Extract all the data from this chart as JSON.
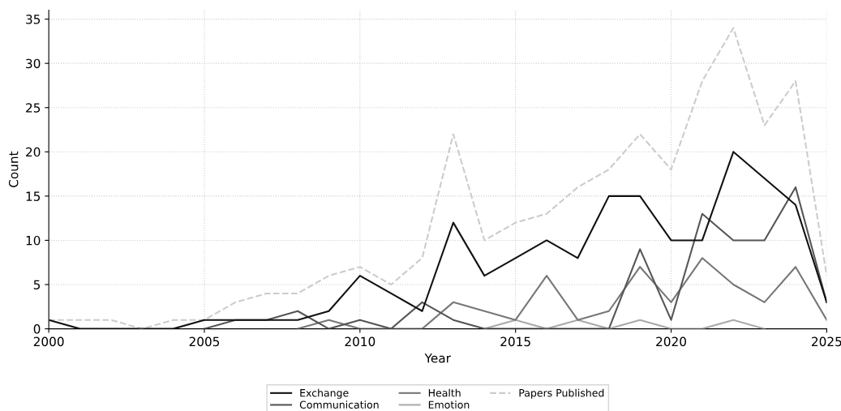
{
  "chart_data": {
    "type": "line",
    "xlabel": "Year",
    "ylabel": "Count",
    "x": [
      2000,
      2001,
      2002,
      2003,
      2004,
      2005,
      2006,
      2007,
      2008,
      2009,
      2010,
      2011,
      2012,
      2013,
      2014,
      2015,
      2016,
      2017,
      2018,
      2019,
      2020,
      2021,
      2022,
      2023,
      2024,
      2025
    ],
    "series": [
      {
        "name": "Exchange",
        "color": "#111111",
        "values": [
          1,
          0,
          0,
          0,
          0,
          1,
          1,
          1,
          1,
          2,
          6,
          4,
          2,
          12,
          6,
          8,
          10,
          8,
          15,
          15,
          10,
          10,
          20,
          17,
          14,
          3
        ]
      },
      {
        "name": "Communication",
        "color": "#555555",
        "values": [
          null,
          null,
          null,
          null,
          null,
          0,
          1,
          1,
          2,
          0,
          1,
          0,
          3,
          1,
          0,
          0,
          0,
          0,
          0,
          9,
          1,
          13,
          10,
          10,
          16,
          3
        ]
      },
      {
        "name": "Health",
        "color": "#777777",
        "values": [
          null,
          null,
          null,
          null,
          null,
          null,
          null,
          null,
          0,
          1,
          0,
          0,
          0,
          3,
          2,
          1,
          6,
          1,
          2,
          7,
          3,
          8,
          5,
          3,
          7,
          1
        ]
      },
      {
        "name": "Emotion",
        "color": "#aaaaaa",
        "values": [
          null,
          null,
          null,
          null,
          null,
          null,
          null,
          null,
          null,
          null,
          null,
          null,
          null,
          null,
          0,
          1,
          0,
          1,
          0,
          1,
          0,
          0,
          1,
          0,
          null,
          null
        ]
      },
      {
        "name": "Papers Published",
        "color": "#cccccc",
        "line_style": "dashed",
        "values": [
          1,
          1,
          1,
          0,
          1,
          1,
          3,
          4,
          4,
          6,
          7,
          5,
          8,
          22,
          10,
          12,
          13,
          16,
          18,
          22,
          18,
          28,
          34,
          23,
          28,
          6
        ]
      }
    ],
    "xlim": [
      2000,
      2025
    ],
    "xticks": [
      2000,
      2005,
      2010,
      2015,
      2020,
      2025
    ],
    "ylim": [
      0,
      36
    ],
    "yticks": [
      0,
      5,
      10,
      15,
      20,
      25,
      30,
      35
    ],
    "grid": true,
    "legend": "bottom",
    "marker": "none",
    "line_style": "solid"
  }
}
